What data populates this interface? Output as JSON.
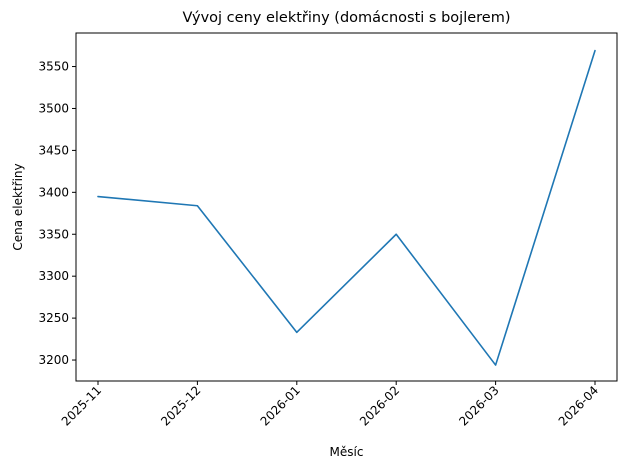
{
  "chart_data": {
    "type": "line",
    "title": "Vývoj ceny elektřiny (domácnosti s bojlerem)",
    "xlabel": "Měsíc",
    "ylabel": "Cena elektřiny",
    "categories": [
      "2025-11",
      "2025-12",
      "2026-01",
      "2026-02",
      "2026-03",
      "2026-04"
    ],
    "values": [
      3395,
      3384,
      3233,
      3350,
      3194,
      3569
    ],
    "yticks": [
      3200,
      3250,
      3300,
      3350,
      3400,
      3450,
      3500,
      3550
    ],
    "ylim": [
      3175,
      3590
    ],
    "grid": false,
    "line_color": "#1f77b4"
  }
}
